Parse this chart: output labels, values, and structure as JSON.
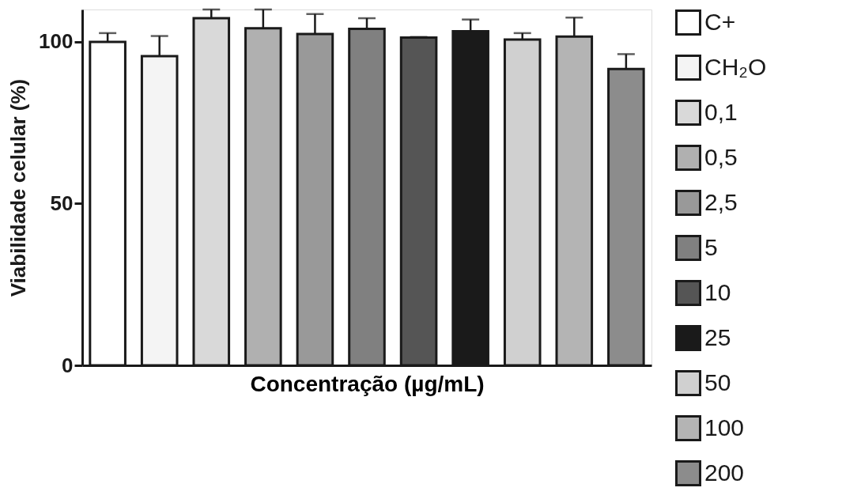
{
  "chart_data": {
    "type": "bar",
    "xlabel": "Concentração (µg/mL)",
    "ylabel": "Viabilidade celular (%)",
    "categories": [
      null,
      null,
      null,
      null,
      null,
      null,
      null,
      null,
      null,
      null,
      null
    ],
    "series": [
      {
        "name": "C+",
        "color": "#ffffff",
        "values": [
          100,
          null,
          null,
          null,
          null,
          null,
          null,
          null,
          null,
          null,
          null
        ],
        "errors": [
          2.7,
          null,
          null,
          null,
          null,
          null,
          null,
          null,
          null,
          null,
          null
        ]
      },
      {
        "name": "CH₂O",
        "color": "#f4f4f4",
        "values": [
          null,
          95.6,
          null,
          null,
          null,
          null,
          null,
          null,
          null,
          null,
          null
        ],
        "errors": [
          null,
          6.2,
          null,
          null,
          null,
          null,
          null,
          null,
          null,
          null,
          null
        ]
      },
      {
        "name": "0,1",
        "color": "#d9d9d9",
        "values": [
          null,
          null,
          107.3,
          null,
          null,
          null,
          null,
          null,
          null,
          null,
          null
        ],
        "errors": [
          null,
          null,
          2.7,
          null,
          null,
          null,
          null,
          null,
          null,
          null,
          null
        ]
      },
      {
        "name": "0,5",
        "color": "#b0b0b0",
        "values": [
          null,
          null,
          null,
          104.2,
          null,
          null,
          null,
          null,
          null,
          null,
          null
        ],
        "errors": [
          null,
          null,
          null,
          5.8,
          null,
          null,
          null,
          null,
          null,
          null,
          null
        ]
      },
      {
        "name": "2,5",
        "color": "#999999",
        "values": [
          null,
          null,
          null,
          null,
          102.4,
          null,
          null,
          null,
          null,
          null,
          null
        ],
        "errors": [
          null,
          null,
          null,
          null,
          6.2,
          null,
          null,
          null,
          null,
          null,
          null
        ]
      },
      {
        "name": "5",
        "color": "#808080",
        "values": [
          null,
          null,
          null,
          null,
          null,
          104.0,
          null,
          null,
          null,
          null,
          null
        ],
        "errors": [
          null,
          null,
          null,
          null,
          null,
          3.3,
          null,
          null,
          null,
          null,
          null
        ]
      },
      {
        "name": "10",
        "color": "#555555",
        "values": [
          null,
          null,
          null,
          null,
          null,
          null,
          101.3,
          null,
          null,
          null,
          null
        ],
        "errors": [
          null,
          null,
          null,
          null,
          null,
          null,
          0.2,
          null,
          null,
          null,
          null
        ]
      },
      {
        "name": "25",
        "color": "#1a1a1a",
        "values": [
          null,
          null,
          null,
          null,
          null,
          null,
          null,
          103.3,
          null,
          null,
          null
        ],
        "errors": [
          null,
          null,
          null,
          null,
          null,
          null,
          null,
          3.6,
          null,
          null,
          null
        ]
      },
      {
        "name": "50",
        "color": "#d0d0d0",
        "values": [
          null,
          null,
          null,
          null,
          null,
          null,
          null,
          null,
          100.7,
          null,
          null
        ],
        "errors": [
          null,
          null,
          null,
          null,
          null,
          null,
          null,
          null,
          2.0,
          null,
          null
        ]
      },
      {
        "name": "100",
        "color": "#b4b4b4",
        "values": [
          null,
          null,
          null,
          null,
          null,
          null,
          null,
          null,
          null,
          101.6,
          null
        ],
        "errors": [
          null,
          null,
          null,
          null,
          null,
          null,
          null,
          null,
          null,
          5.9,
          null
        ]
      },
      {
        "name": "200",
        "color": "#8c8c8c",
        "values": [
          null,
          null,
          null,
          null,
          null,
          null,
          null,
          null,
          null,
          null,
          91.6
        ],
        "errors": [
          null,
          null,
          null,
          null,
          null,
          null,
          null,
          null,
          null,
          null,
          4.6
        ]
      }
    ],
    "ylim": [
      0,
      110
    ],
    "yticks": [
      0,
      50,
      100
    ],
    "grid": false,
    "legend": "right",
    "tick_labels": "y"
  }
}
